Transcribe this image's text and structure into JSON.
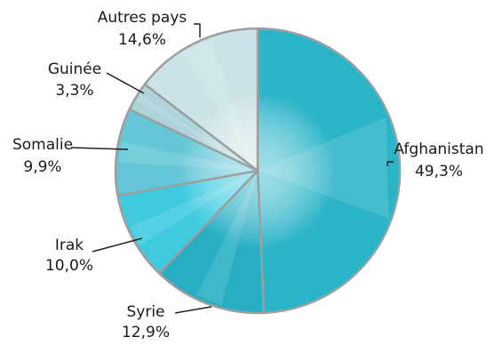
{
  "chart_data": {
    "type": "pie",
    "categories": [
      "Afghanistan",
      "Syrie",
      "Irak",
      "Somalie",
      "Guinée",
      "Autres pays"
    ],
    "values": [
      49.3,
      12.9,
      10.0,
      9.9,
      3.3,
      14.6
    ],
    "value_labels": [
      "49,3%",
      "12,9%",
      "10,0%",
      "9,9%",
      "3,3%",
      "14,6%"
    ],
    "colors": [
      "#2BB4C8",
      "#27AEC3",
      "#3FCAE0",
      "#64C6D6",
      "#AED4DA",
      "#CBE3E6"
    ],
    "start": "12 o'clock",
    "direction": "clockwise",
    "legend": "none",
    "data_labels": "outside with leader lines"
  }
}
